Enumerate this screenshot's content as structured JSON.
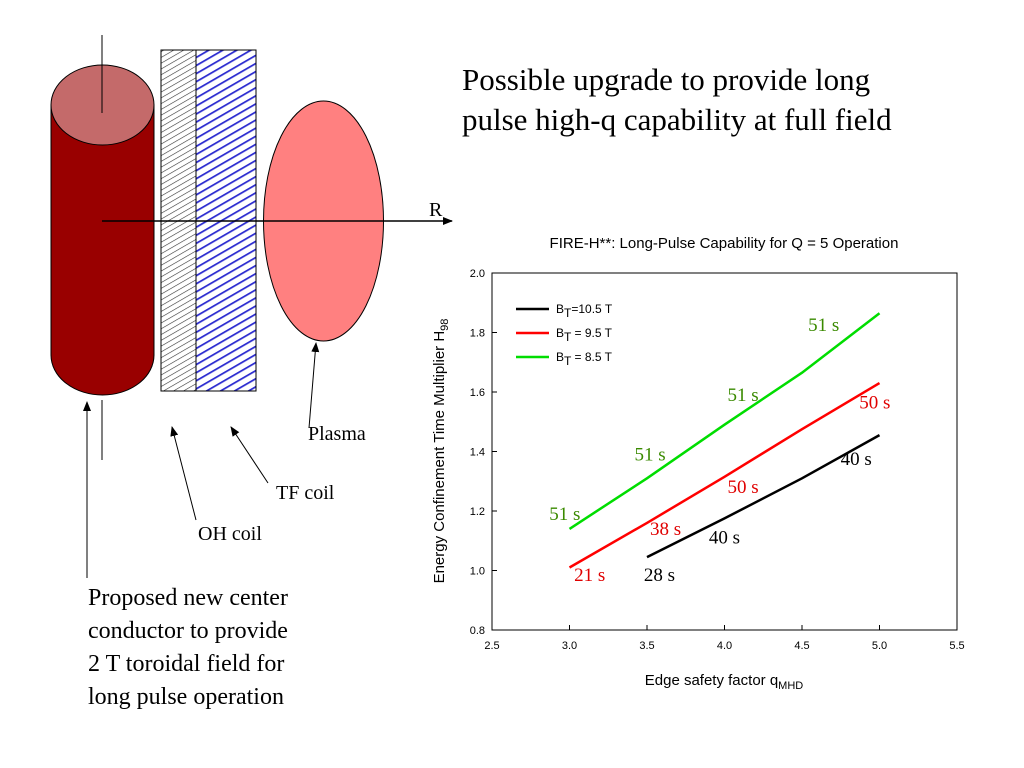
{
  "slide": {
    "title_line1": "Possible upgrade to provide long",
    "title_line2": "pulse high-q capability at full field",
    "caption_lines": [
      "Proposed new center",
      "conductor to provide",
      "2 T toroidal field for",
      "long pulse operation"
    ]
  },
  "diagram": {
    "axis_label": "R",
    "labels": {
      "plasma": "Plasma",
      "tf_coil": "TF coil",
      "oh_coil": "OH coil"
    },
    "colors": {
      "conductor": "#990000",
      "conductor_top": "#c46a6a",
      "plasma": "#ff8080",
      "tf_hatch": "#2b2bd0"
    }
  },
  "chart_data": {
    "type": "line",
    "title": "FIRE-H**:  Long-Pulse Capability for Q = 5 Operation",
    "xlabel_main": "Edge safety factor q",
    "xlabel_sub": "MHD",
    "ylabel_main": "Energy Confinement Time Multiplier H",
    "ylabel_sub": "98",
    "xlim": [
      2.5,
      5.5
    ],
    "ylim": [
      0.8,
      2.0
    ],
    "xticks": [
      "2.5",
      "3.0",
      "3.5",
      "4.0",
      "4.5",
      "5.0",
      "5.5"
    ],
    "yticks": [
      "0.8",
      "1.0",
      "1.2",
      "1.4",
      "1.6",
      "1.8",
      "2.0"
    ],
    "legend_position": "top-left",
    "series": [
      {
        "name_base": "B",
        "name_sub": "T",
        "name_rest": "=10.5 T",
        "color": "#000000",
        "x": [
          3.5,
          4.0,
          4.5,
          5.0
        ],
        "y": [
          1.045,
          1.175,
          1.31,
          1.455
        ],
        "annotations": [
          {
            "text": "28 s",
            "x": 3.58,
            "y": 0.965
          },
          {
            "text": "40 s",
            "x": 4.0,
            "y": 1.09
          },
          {
            "text": "40 s",
            "x": 4.85,
            "y": 1.355
          }
        ]
      },
      {
        "name_base": "B",
        "name_sub": "T",
        "name_rest": " = 9.5 T",
        "color": "#ff0000",
        "x": [
          3.0,
          3.5,
          4.0,
          4.5,
          5.0
        ],
        "y": [
          1.01,
          1.16,
          1.315,
          1.475,
          1.63
        ],
        "annotations": [
          {
            "text": "21 s",
            "x": 3.13,
            "y": 0.965
          },
          {
            "text": "38 s",
            "x": 3.62,
            "y": 1.12
          },
          {
            "text": "50 s",
            "x": 4.12,
            "y": 1.26
          },
          {
            "text": "50 s",
            "x": 4.97,
            "y": 1.545
          }
        ]
      },
      {
        "name_base": "B",
        "name_sub": "T",
        "name_rest": " = 8.5 T",
        "color": "#00dd00",
        "x": [
          3.0,
          3.5,
          4.0,
          4.5,
          5.0
        ],
        "y": [
          1.14,
          1.31,
          1.49,
          1.665,
          1.865
        ],
        "annotations": [
          {
            "text": "51 s",
            "x": 2.97,
            "y": 1.17
          },
          {
            "text": "51 s",
            "x": 3.52,
            "y": 1.37
          },
          {
            "text": "51 s",
            "x": 4.12,
            "y": 1.57
          },
          {
            "text": "51 s",
            "x": 4.64,
            "y": 1.805
          }
        ]
      }
    ],
    "annotation_colors": [
      "#000000",
      "#e00000",
      "#3a8a00"
    ]
  }
}
